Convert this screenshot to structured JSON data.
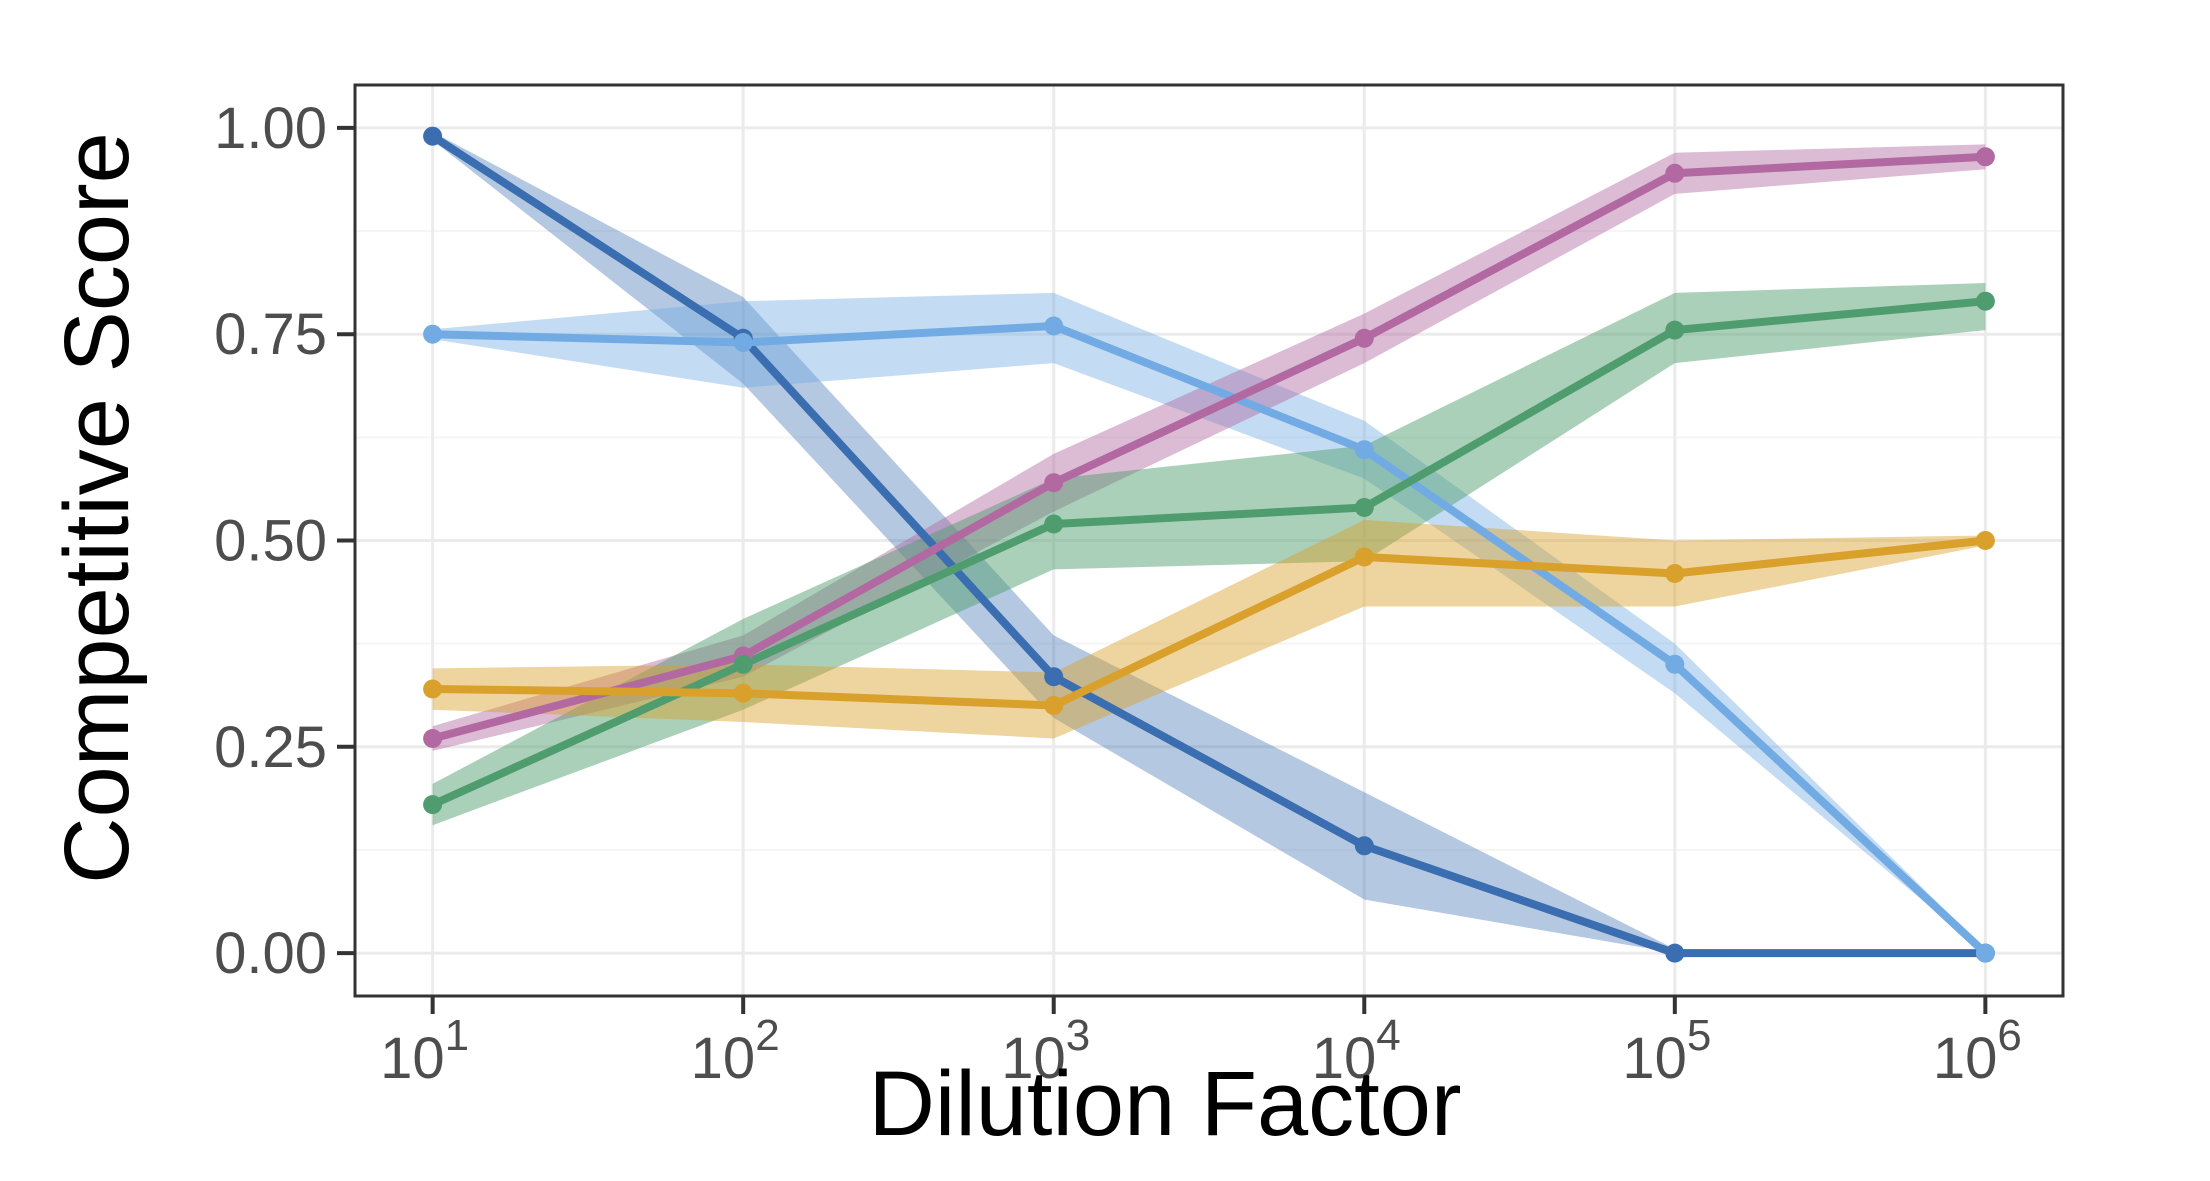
{
  "page": {
    "background_color": "#ffffff"
  },
  "chart_data": {
    "type": "line",
    "title": "",
    "xlabel": "Dilution Factor",
    "ylabel": "Competitive Score",
    "x_scale": "log10",
    "legend": "none",
    "grid": {
      "show": true,
      "major_color": "#ebebeb",
      "minor_color": "#f5f5f5",
      "y_major": [
        0.0,
        0.25,
        0.5,
        0.75,
        1.0
      ],
      "y_minor": [
        0.125,
        0.375,
        0.625,
        0.875
      ],
      "x_major_exponents": [
        1,
        2,
        3,
        4,
        5,
        6
      ]
    },
    "panel": {
      "background": "#ffffff",
      "border_color": "#333333",
      "tick_color": "#333333",
      "tick_label_color": "#4d4d4d"
    },
    "x_axis": {
      "range_log10": [
        0.75,
        6.25
      ],
      "ticks": [
        {
          "exp": 1,
          "base": "10",
          "sup": "1"
        },
        {
          "exp": 2,
          "base": "10",
          "sup": "2"
        },
        {
          "exp": 3,
          "base": "10",
          "sup": "3"
        },
        {
          "exp": 4,
          "base": "10",
          "sup": "4"
        },
        {
          "exp": 5,
          "base": "10",
          "sup": "5"
        },
        {
          "exp": 6,
          "base": "10",
          "sup": "6"
        }
      ]
    },
    "y_axis": {
      "range": [
        -0.052,
        1.052
      ],
      "ticks": [
        {
          "value": 1.0,
          "label": "1.00"
        },
        {
          "value": 0.75,
          "label": "0.75"
        },
        {
          "value": 0.5,
          "label": "0.50"
        },
        {
          "value": 0.25,
          "label": "0.25"
        },
        {
          "value": 0.0,
          "label": "0.00"
        }
      ]
    },
    "x_exponents": [
      1,
      2,
      3,
      4,
      5,
      6
    ],
    "series": [
      {
        "name": "dark-blue",
        "line_color": "#3a6eb0",
        "band_opacity": 0.38,
        "values": [
          0.99,
          0.745,
          0.335,
          0.13,
          0.0,
          0.0
        ],
        "band_low": [
          0.985,
          0.69,
          0.285,
          0.065,
          0.0,
          0.0
        ],
        "band_high": [
          0.995,
          0.795,
          0.385,
          0.195,
          0.005,
          0.002
        ]
      },
      {
        "name": "light-blue",
        "line_color": "#72abe3",
        "band_opacity": 0.42,
        "values": [
          0.75,
          0.74,
          0.76,
          0.61,
          0.35,
          0.0
        ],
        "band_low": [
          0.744,
          0.685,
          0.715,
          0.575,
          0.315,
          0.0
        ],
        "band_high": [
          0.756,
          0.79,
          0.8,
          0.645,
          0.375,
          0.004
        ]
      },
      {
        "name": "magenta",
        "line_color": "#b269a2",
        "band_opacity": 0.45,
        "values": [
          0.26,
          0.36,
          0.57,
          0.745,
          0.945,
          0.965
        ],
        "band_low": [
          0.245,
          0.335,
          0.535,
          0.715,
          0.92,
          0.95
        ],
        "band_high": [
          0.275,
          0.385,
          0.605,
          0.775,
          0.97,
          0.98
        ]
      },
      {
        "name": "green",
        "line_color": "#4f9d6e",
        "band_opacity": 0.48,
        "values": [
          0.18,
          0.35,
          0.52,
          0.54,
          0.755,
          0.79
        ],
        "band_low": [
          0.155,
          0.295,
          0.465,
          0.475,
          0.715,
          0.755
        ],
        "band_high": [
          0.205,
          0.405,
          0.575,
          0.615,
          0.8,
          0.812
        ]
      },
      {
        "name": "gold",
        "line_color": "#d9a02b",
        "band_opacity": 0.45,
        "values": [
          0.32,
          0.315,
          0.3,
          0.48,
          0.46,
          0.5
        ],
        "band_low": [
          0.295,
          0.28,
          0.26,
          0.42,
          0.42,
          0.494
        ],
        "band_high": [
          0.345,
          0.35,
          0.34,
          0.525,
          0.5,
          0.506
        ]
      }
    ]
  }
}
